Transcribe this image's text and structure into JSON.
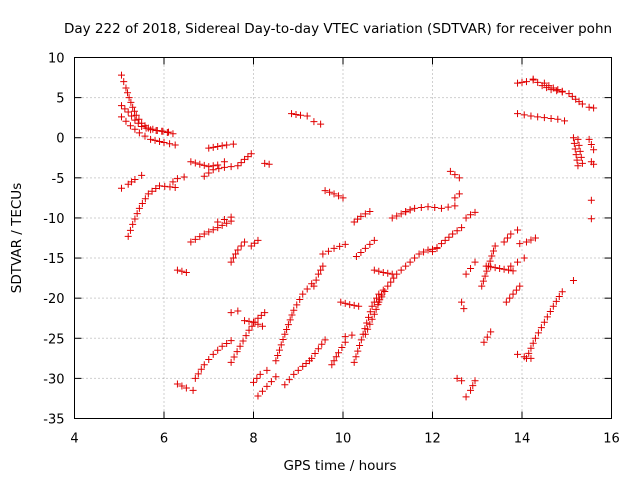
{
  "chart_data": {
    "type": "scatter",
    "title": "Day 222 of 2018, Sidereal Day-to-day VTEC variation (SDTVAR) for receiver pohn",
    "xlabel": "GPS time / hours",
    "ylabel": "SDTVAR / TECUs",
    "xlim": [
      4,
      16
    ],
    "ylim": [
      -35,
      10
    ],
    "xticks": [
      "4",
      "6",
      "8",
      "10",
      "12",
      "14",
      "16"
    ],
    "yticks": [
      "10",
      "5",
      "0",
      "-5",
      "-10",
      "-15",
      "-20",
      "-25",
      "-30",
      "-35"
    ],
    "grid": true,
    "marker": "plus",
    "color": "#e00000",
    "segments": [
      {
        "x": [
          5.05,
          5.15,
          5.22,
          5.3,
          5.38,
          5.5,
          5.65,
          5.85,
          6.1
        ],
        "y": [
          7.8,
          6.2,
          5.0,
          3.8,
          2.8,
          1.8,
          1.2,
          0.9,
          0.7
        ]
      },
      {
        "x": [
          5.05,
          5.2,
          5.35,
          5.5,
          5.7,
          5.95,
          6.2
        ],
        "y": [
          4.0,
          3.2,
          2.2,
          1.4,
          1.0,
          0.8,
          0.5
        ]
      },
      {
        "x": [
          5.05,
          5.25,
          5.45,
          5.7,
          6.0,
          6.25
        ],
        "y": [
          2.6,
          1.5,
          0.6,
          -0.2,
          -0.6,
          -0.9
        ]
      },
      {
        "x": [
          5.05,
          5.2,
          5.35,
          5.5
        ],
        "y": [
          -6.3,
          -5.8,
          -5.2,
          -4.7
        ]
      },
      {
        "x": [
          5.2,
          5.3,
          5.45,
          5.65,
          5.9,
          6.25
        ],
        "y": [
          -12.3,
          -10.8,
          -8.8,
          -7.0,
          -6.0,
          -6.2
        ]
      },
      {
        "x": [
          6.2,
          6.3,
          6.45
        ],
        "y": [
          -5.5,
          -5.1,
          -4.9
        ]
      },
      {
        "x": [
          6.3,
          6.5
        ],
        "y": [
          -16.5,
          -16.8
        ]
      },
      {
        "x": [
          6.6,
          6.8,
          7.0,
          7.2,
          7.35
        ],
        "y": [
          -3.0,
          -3.3,
          -3.6,
          -3.4,
          -3.0
        ]
      },
      {
        "x": [
          7.0,
          7.2,
          7.4,
          7.55
        ],
        "y": [
          -1.3,
          -1.1,
          -0.9,
          -0.8
        ]
      },
      {
        "x": [
          6.6,
          6.9,
          7.2,
          7.5
        ],
        "y": [
          -13.0,
          -12.0,
          -11.2,
          -10.4
        ]
      },
      {
        "x": [
          6.9,
          7.1,
          7.35,
          7.5
        ],
        "y": [
          -4.8,
          -4.0,
          -3.7,
          -3.6
        ]
      },
      {
        "x": [
          7.2,
          7.35,
          7.5
        ],
        "y": [
          -10.5,
          -10.2,
          -9.9
        ]
      },
      {
        "x": [
          7.5,
          7.65,
          7.8
        ],
        "y": [
          -15.5,
          -14.0,
          -13.0
        ]
      },
      {
        "x": [
          7.65,
          7.8,
          7.95
        ],
        "y": [
          -3.5,
          -2.7,
          -2.0
        ]
      },
      {
        "x": [
          7.95,
          8.1
        ],
        "y": [
          -13.5,
          -12.8
        ]
      },
      {
        "x": [
          8.25,
          8.35
        ],
        "y": [
          -3.2,
          -3.3
        ]
      },
      {
        "x": [
          8.85,
          9.05,
          9.2
        ],
        "y": [
          3.0,
          2.8,
          2.7
        ]
      },
      {
        "x": [
          9.35,
          9.5
        ],
        "y": [
          2.0,
          1.7
        ]
      },
      {
        "x": [
          6.3,
          6.5,
          6.65
        ],
        "y": [
          -30.7,
          -31.2,
          -31.5
        ]
      },
      {
        "x": [
          6.7,
          6.9,
          7.1,
          7.3,
          7.5
        ],
        "y": [
          -30.0,
          -28.3,
          -27.0,
          -26.0,
          -25.3
        ]
      },
      {
        "x": [
          7.5,
          7.7,
          7.9,
          8.1,
          8.25
        ],
        "y": [
          -28.0,
          -26.0,
          -24.0,
          -22.5,
          -21.8
        ]
      },
      {
        "x": [
          7.5,
          7.65
        ],
        "y": [
          -21.8,
          -21.6
        ]
      },
      {
        "x": [
          7.8,
          8.0,
          8.2
        ],
        "y": [
          -22.8,
          -23.0,
          -23.5
        ]
      },
      {
        "x": [
          8.0,
          8.15,
          8.3
        ],
        "y": [
          -30.5,
          -29.5,
          -29.0
        ]
      },
      {
        "x": [
          8.1,
          8.3,
          8.5
        ],
        "y": [
          -32.2,
          -31.0,
          -29.8
        ]
      },
      {
        "x": [
          8.5,
          8.7,
          8.9,
          9.1,
          9.3
        ],
        "y": [
          -27.8,
          -24.5,
          -21.5,
          -19.5,
          -18.2
        ]
      },
      {
        "x": [
          8.7,
          8.9,
          9.1,
          9.25
        ],
        "y": [
          -30.8,
          -29.5,
          -28.5,
          -27.8
        ]
      },
      {
        "x": [
          9.35,
          9.45,
          9.55
        ],
        "y": [
          -18.5,
          -17.0,
          -16.0
        ]
      },
      {
        "x": [
          9.3,
          9.45,
          9.6
        ],
        "y": [
          -27.5,
          -26.3,
          -25.2
        ]
      },
      {
        "x": [
          9.55,
          9.8,
          10.05
        ],
        "y": [
          -14.5,
          -13.8,
          -13.3
        ]
      },
      {
        "x": [
          9.6,
          9.8,
          10.0
        ],
        "y": [
          -6.6,
          -7.0,
          -7.5
        ]
      },
      {
        "x": [
          9.75,
          9.9,
          10.05
        ],
        "y": [
          -28.3,
          -26.8,
          -25.5
        ]
      },
      {
        "x": [
          9.95,
          10.15,
          10.35
        ],
        "y": [
          -20.5,
          -20.8,
          -21.0
        ]
      },
      {
        "x": [
          10.05,
          10.2
        ],
        "y": [
          -24.8,
          -24.6
        ]
      },
      {
        "x": [
          10.25,
          10.4,
          10.6
        ],
        "y": [
          -10.5,
          -9.8,
          -9.2
        ]
      },
      {
        "x": [
          10.25,
          10.45,
          10.65,
          10.8
        ],
        "y": [
          -28.0,
          -24.5,
          -21.0,
          -19.5
        ]
      },
      {
        "x": [
          10.3,
          10.5,
          10.7
        ],
        "y": [
          -14.8,
          -13.8,
          -12.8
        ]
      },
      {
        "x": [
          10.5,
          10.7,
          10.9
        ],
        "y": [
          -24.5,
          -22.0,
          -19.0
        ]
      },
      {
        "x": [
          10.7,
          10.9,
          11.1
        ],
        "y": [
          -16.5,
          -16.8,
          -17.0
        ]
      },
      {
        "x": [
          10.8,
          11.0,
          11.2,
          11.4
        ],
        "y": [
          -20.5,
          -18.5,
          -17.0,
          -16.0
        ]
      },
      {
        "x": [
          11.1,
          11.3,
          11.5
        ],
        "y": [
          -10.0,
          -9.5,
          -9.0
        ]
      },
      {
        "x": [
          11.5,
          11.7,
          11.9,
          12.1
        ],
        "y": [
          -15.5,
          -14.5,
          -14.0,
          -13.8
        ]
      },
      {
        "x": [
          11.4,
          11.6,
          11.9,
          12.2,
          12.5
        ],
        "y": [
          -9.2,
          -8.8,
          -8.6,
          -8.8,
          -8.5
        ]
      },
      {
        "x": [
          12.0,
          12.2,
          12.45,
          12.65
        ],
        "y": [
          -14.2,
          -13.2,
          -12.0,
          -11.2
        ]
      },
      {
        "x": [
          12.4,
          12.5,
          12.6
        ],
        "y": [
          -4.2,
          -4.6,
          -5.0
        ]
      },
      {
        "x": [
          12.5,
          12.6
        ],
        "y": [
          -7.5,
          -7.0
        ]
      },
      {
        "x": [
          12.65,
          12.7
        ],
        "y": [
          -20.5,
          -21.3
        ]
      },
      {
        "x": [
          12.55,
          12.65
        ],
        "y": [
          -30.0,
          -30.3
        ]
      },
      {
        "x": [
          12.75,
          12.85,
          12.95
        ],
        "y": [
          -17.0,
          -16.3,
          -15.5
        ]
      },
      {
        "x": [
          12.75,
          12.85,
          12.95
        ],
        "y": [
          -10.0,
          -9.6,
          -9.3
        ]
      },
      {
        "x": [
          12.75,
          12.85,
          12.95
        ],
        "y": [
          -32.3,
          -31.5,
          -30.3
        ]
      },
      {
        "x": [
          13.15,
          13.3
        ],
        "y": [
          -25.5,
          -24.2
        ]
      },
      {
        "x": [
          13.1,
          13.25,
          13.4
        ],
        "y": [
          -18.5,
          -16.0,
          -13.5
        ]
      },
      {
        "x": [
          13.2,
          13.4,
          13.6,
          13.8
        ],
        "y": [
          -16.0,
          -16.2,
          -16.4,
          -16.6
        ]
      },
      {
        "x": [
          13.6,
          13.75,
          13.9
        ],
        "y": [
          -13.0,
          -12.0,
          -11.5
        ]
      },
      {
        "x": [
          13.65,
          13.8,
          13.95
        ],
        "y": [
          -20.5,
          -19.5,
          -18.5
        ]
      },
      {
        "x": [
          13.75,
          13.9,
          14.05
        ],
        "y": [
          -16.0,
          -15.5,
          -15.0
        ]
      },
      {
        "x": [
          13.9,
          14.05,
          14.2
        ],
        "y": [
          -27.0,
          -27.3,
          -27.5
        ]
      },
      {
        "x": [
          13.95,
          14.1,
          14.3
        ],
        "y": [
          -13.2,
          -13.0,
          -12.5
        ]
      },
      {
        "x": [
          14.1,
          14.3,
          14.5,
          14.7,
          14.9
        ],
        "y": [
          -27.5,
          -25.0,
          -23.0,
          -21.0,
          -19.2
        ]
      },
      {
        "x": [
          13.9,
          14.1,
          14.25
        ],
        "y": [
          6.8,
          7.0,
          7.2
        ]
      },
      {
        "x": [
          14.25,
          14.45,
          14.65,
          14.9
        ],
        "y": [
          7.3,
          6.5,
          6.0,
          5.7
        ]
      },
      {
        "x": [
          14.5,
          14.7,
          14.9
        ],
        "y": [
          6.8,
          6.2,
          5.8
        ]
      },
      {
        "x": [
          13.9,
          14.2,
          14.5,
          14.8,
          14.95
        ],
        "y": [
          3.0,
          2.7,
          2.5,
          2.3,
          2.1
        ]
      },
      {
        "x": [
          15.05,
          15.2,
          15.35
        ],
        "y": [
          5.5,
          4.8,
          4.2
        ]
      },
      {
        "x": [
          15.15,
          15.25
        ],
        "y": [
          0.0,
          -3.5
        ]
      },
      {
        "x": [
          15.25,
          15.35
        ],
        "y": [
          -0.2,
          -3.2
        ]
      },
      {
        "x": [
          15.15
        ],
        "y": [
          -17.8
        ]
      },
      {
        "x": [
          15.5,
          15.6
        ],
        "y": [
          3.8,
          3.7
        ]
      },
      {
        "x": [
          15.5,
          15.6
        ],
        "y": [
          -0.2,
          -1.5
        ]
      },
      {
        "x": [
          15.55,
          15.6
        ],
        "y": [
          -3.0,
          -3.3
        ]
      },
      {
        "x": [
          15.55
        ],
        "y": [
          -7.8
        ]
      },
      {
        "x": [
          15.55
        ],
        "y": [
          -10.1
        ]
      }
    ]
  }
}
